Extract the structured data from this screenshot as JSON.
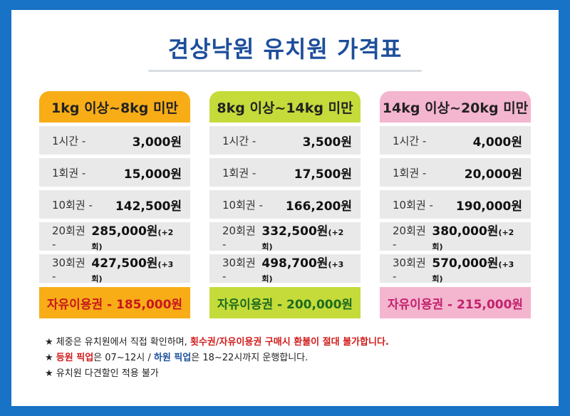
{
  "title": "견상낙원 유치원 가격표",
  "columns": [
    {
      "header": "1kg 이상~8kg 미만",
      "rows": [
        {
          "label": "1시간 -",
          "value": "3,000원",
          "bonus": ""
        },
        {
          "label": "1회권 -",
          "value": "15,000원",
          "bonus": ""
        },
        {
          "label": "10회권 -",
          "value": "142,500원",
          "bonus": ""
        },
        {
          "label": "20회권 -",
          "value": "285,000원",
          "bonus": "(+2회)"
        },
        {
          "label": "30회권 -",
          "value": "427,500원",
          "bonus": "(+3회)"
        }
      ],
      "free_pass": "자유이용권 - 185,000원"
    },
    {
      "header": "8kg 이상~14kg 미만",
      "rows": [
        {
          "label": "1시간 -",
          "value": "3,500원",
          "bonus": ""
        },
        {
          "label": "1회권 -",
          "value": "17,500원",
          "bonus": ""
        },
        {
          "label": "10회권 -",
          "value": "166,200원",
          "bonus": ""
        },
        {
          "label": "20회권 -",
          "value": "332,500원",
          "bonus": "(+2회)"
        },
        {
          "label": "30회권 -",
          "value": "498,700원",
          "bonus": "(+3회)"
        }
      ],
      "free_pass": "자유이용권 - 200,000원"
    },
    {
      "header": "14kg 이상~20kg 미만",
      "rows": [
        {
          "label": "1시간 -",
          "value": "4,000원",
          "bonus": ""
        },
        {
          "label": "1회권 -",
          "value": "20,000원",
          "bonus": ""
        },
        {
          "label": "10회권 -",
          "value": "190,000원",
          "bonus": ""
        },
        {
          "label": "20회권 -",
          "value": "380,000원",
          "bonus": "(+2회)"
        },
        {
          "label": "30회권 -",
          "value": "570,000원",
          "bonus": "(+3회)"
        }
      ],
      "free_pass": "자유이용권 - 215,000원"
    }
  ],
  "notes": {
    "n1_a": "★ 체중은 유치원에서 직접 확인하며, ",
    "n1_b": "횟수권/자유이용권 구매시 환불이 절대 불가합니다.",
    "n2_a": "★ ",
    "n2_b": "등원 픽업",
    "n2_c": "은 07~12시 / ",
    "n2_d": "하원 픽업",
    "n2_e": "은 18~22시까지 운행합니다.",
    "n3": "★ 유치원 다견할인 적용 불가"
  },
  "colors": {
    "background": "#1872c6",
    "title": "#1d4e9b",
    "col1": "#f8ad17",
    "col2": "#c4db3a",
    "col3": "#f4b5cf",
    "note_red": "#d11a1a"
  }
}
